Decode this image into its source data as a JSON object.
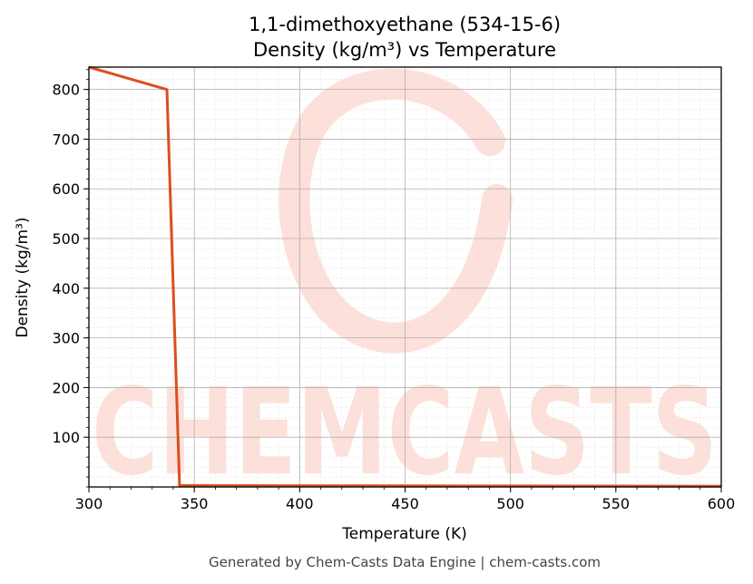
{
  "chart_data": {
    "type": "line",
    "title": "1,1-dimethoxyethane (534-15-6)",
    "subtitle": "Density (kg/m³) vs Temperature",
    "xlabel": "Temperature (K)",
    "ylabel": "Density (kg/m³)",
    "xlim": [
      300,
      600
    ],
    "ylim": [
      0,
      845
    ],
    "x_ticks": [
      300,
      350,
      400,
      450,
      500,
      550,
      600
    ],
    "y_ticks": [
      100,
      200,
      300,
      400,
      500,
      600,
      700,
      800
    ],
    "grid": true,
    "series": [
      {
        "color": "#d9501e",
        "x": [
          300,
          337,
          343,
          350,
          400,
          450,
          500,
          550,
          600
        ],
        "y": [
          845,
          800,
          3,
          2.9,
          2.5,
          2.2,
          2.0,
          1.8,
          1.6
        ]
      }
    ]
  },
  "watermark": {
    "text": "CHEMCASTS",
    "color": "#fde0da"
  },
  "footer": "Generated by Chem-Casts Data Engine | chem-casts.com"
}
